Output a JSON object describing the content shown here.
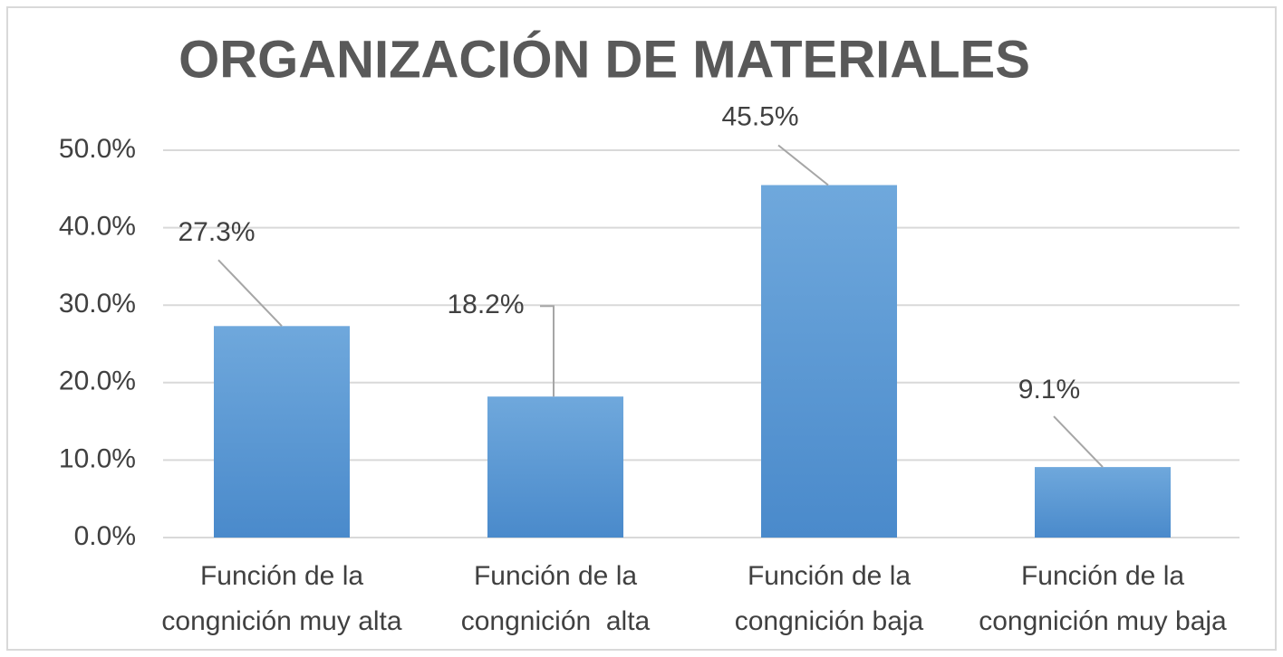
{
  "chart_data": {
    "type": "bar",
    "title": "ORGANIZACIÓN DE MATERIALES",
    "categories": [
      "Función de la\ncongnición muy alta",
      "Función de la\ncongnición  alta",
      "Función de la\ncongnición baja",
      "Función de la\ncongnición muy baja"
    ],
    "values": [
      27.3,
      18.2,
      45.5,
      9.1
    ],
    "value_labels": [
      "27.3%",
      "18.2%",
      "45.5%",
      "9.1%"
    ],
    "color": "#5b9bd5",
    "ylim": [
      0,
      50
    ],
    "yticks": [
      {
        "value": 0,
        "label": "0.0%"
      },
      {
        "value": 10,
        "label": "10.0%"
      },
      {
        "value": 20,
        "label": "20.0%"
      },
      {
        "value": 30,
        "label": "30.0%"
      },
      {
        "value": 40,
        "label": "40.0%"
      },
      {
        "value": 50,
        "label": "50.0%"
      }
    ],
    "grid": true
  }
}
